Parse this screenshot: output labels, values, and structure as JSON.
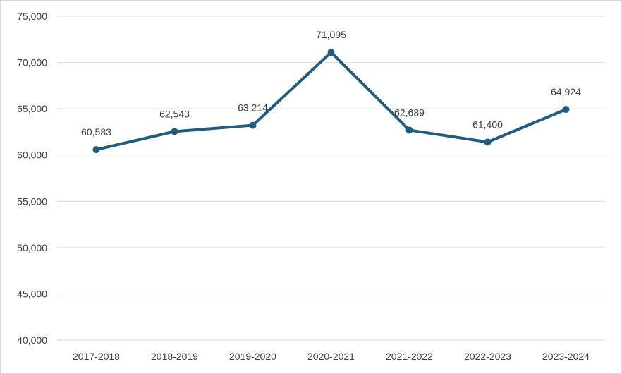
{
  "chart_data": {
    "type": "line",
    "title": "",
    "xlabel": "",
    "ylabel": "",
    "categories": [
      "2017-2018",
      "2018-2019",
      "2019-2020",
      "2020-2021",
      "2021-2022",
      "2022-2023",
      "2023-2024"
    ],
    "series": [
      {
        "values": [
          60583,
          62543,
          63214,
          71095,
          62689,
          61400,
          64924
        ],
        "data_labels": [
          "60,583",
          "62,543",
          "63,214",
          "71,095",
          "62,689",
          "61,400",
          "64,924"
        ],
        "color": "#1f5c7f"
      }
    ],
    "ylim": [
      40000,
      75000
    ],
    "y_ticks": [
      40000,
      45000,
      50000,
      55000,
      60000,
      65000,
      70000,
      75000
    ],
    "y_tick_labels": [
      "40,000",
      "45,000",
      "50,000",
      "55,000",
      "60,000",
      "65,000",
      "70,000",
      "75,000"
    ],
    "grid": "horizontal",
    "legend": "none"
  }
}
